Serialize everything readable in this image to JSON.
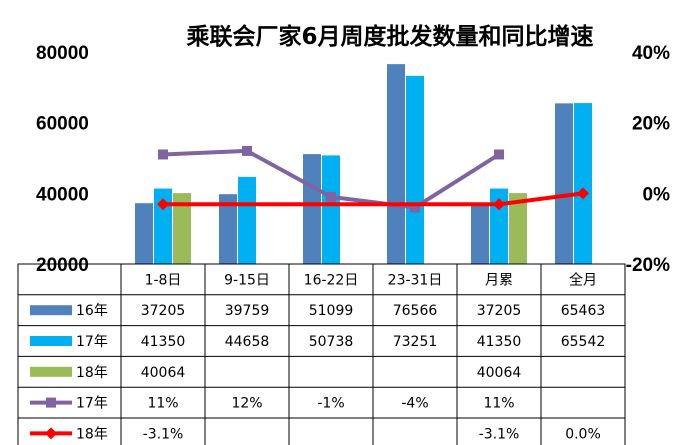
{
  "chart_data": {
    "type": "bar",
    "title": "乘联会厂家6月周度批发数量和同比增速",
    "categories": [
      "1-8日",
      "9-15日",
      "16-22日",
      "23-31日",
      "月累",
      "全月"
    ],
    "y_left": {
      "ticks": [
        "80000",
        "60000",
        "40000",
        "20000"
      ],
      "range": [
        20000,
        80000
      ]
    },
    "y_right": {
      "ticks": [
        "40%",
        "20%",
        "0%",
        "-20%"
      ],
      "range": [
        -20,
        40
      ]
    },
    "grid": false,
    "legend": "data-table",
    "series": [
      {
        "name": "16年",
        "kind": "bar",
        "color": "#4f81bd",
        "values": [
          37205,
          39759,
          51099,
          76566,
          37205,
          65463
        ],
        "labels": [
          "37205",
          "39759",
          "51099",
          "76566",
          "37205",
          "65463"
        ]
      },
      {
        "name": "17年",
        "kind": "bar",
        "color": "#00b0f0",
        "values": [
          41350,
          44658,
          50738,
          73251,
          41350,
          65542
        ],
        "labels": [
          "41350",
          "44658",
          "50738",
          "73251",
          "41350",
          "65542"
        ]
      },
      {
        "name": "18年",
        "kind": "bar",
        "color": "#9bbb59",
        "values": [
          40064,
          null,
          null,
          null,
          40064,
          null
        ],
        "labels": [
          "40064",
          "",
          "",
          "",
          "40064",
          ""
        ]
      },
      {
        "name": "17年",
        "kind": "line",
        "axis": "right",
        "color": "#8064a2",
        "marker": "square",
        "values": [
          11,
          12,
          -1,
          -4,
          11,
          null
        ],
        "labels": [
          "11%",
          "12%",
          "-1%",
          "-4%",
          "11%",
          ""
        ]
      },
      {
        "name": "18年",
        "kind": "line",
        "axis": "right",
        "color": "#ff0000",
        "marker": "diamond",
        "values": [
          -3.1,
          null,
          null,
          null,
          -3.1,
          0.0
        ],
        "labels": [
          "-3.1%",
          "",
          "",
          "",
          "-3.1%",
          "0.0%"
        ]
      }
    ]
  }
}
